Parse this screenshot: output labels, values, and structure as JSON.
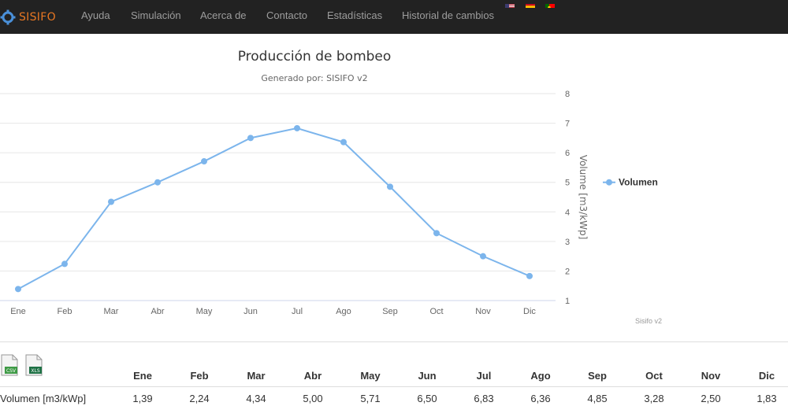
{
  "nav": {
    "logo_text": "SISIFO",
    "items": [
      "Ayuda",
      "Simulación",
      "Acerca de",
      "Contacto",
      "Estadísticas",
      "Historial de cambios"
    ],
    "flags": [
      "flag-us-icon",
      "flag-es-icon",
      "flag-pt-icon"
    ]
  },
  "chart_data": {
    "type": "line",
    "title": "Producción de bombeo",
    "subtitle": "Generado por: SISIFO v2",
    "ylabel": "Volume [m3/kWp]",
    "xlabel": "",
    "categories": [
      "Ene",
      "Feb",
      "Mar",
      "Abr",
      "May",
      "Jun",
      "Jul",
      "Ago",
      "Sep",
      "Oct",
      "Nov",
      "Dic"
    ],
    "series": [
      {
        "name": "Volumen",
        "values": [
          1.39,
          2.24,
          4.34,
          5.0,
          5.71,
          6.5,
          6.83,
          6.36,
          4.85,
          3.28,
          2.5,
          1.83
        ],
        "color": "#7cb5ec"
      }
    ],
    "yticks": [
      1,
      2,
      3,
      4,
      5,
      6,
      7,
      8
    ],
    "ylim": [
      1,
      8
    ],
    "y_axis_side": "right",
    "grid": true,
    "legend_position": "right",
    "credits": "Sisifo v2"
  },
  "table": {
    "headers": [
      "Ene",
      "Feb",
      "Mar",
      "Abr",
      "May",
      "Jun",
      "Jul",
      "Ago",
      "Sep",
      "Oct",
      "Nov",
      "Dic"
    ],
    "row_label": "Volumen [m3/kWp]",
    "values": [
      "1,39",
      "2,24",
      "4,34",
      "5,00",
      "5,71",
      "6,50",
      "6,83",
      "6,36",
      "4,85",
      "3,28",
      "2,50",
      "1,83"
    ]
  },
  "export": {
    "csv_label": "CSV",
    "xls_label": "XLS"
  }
}
